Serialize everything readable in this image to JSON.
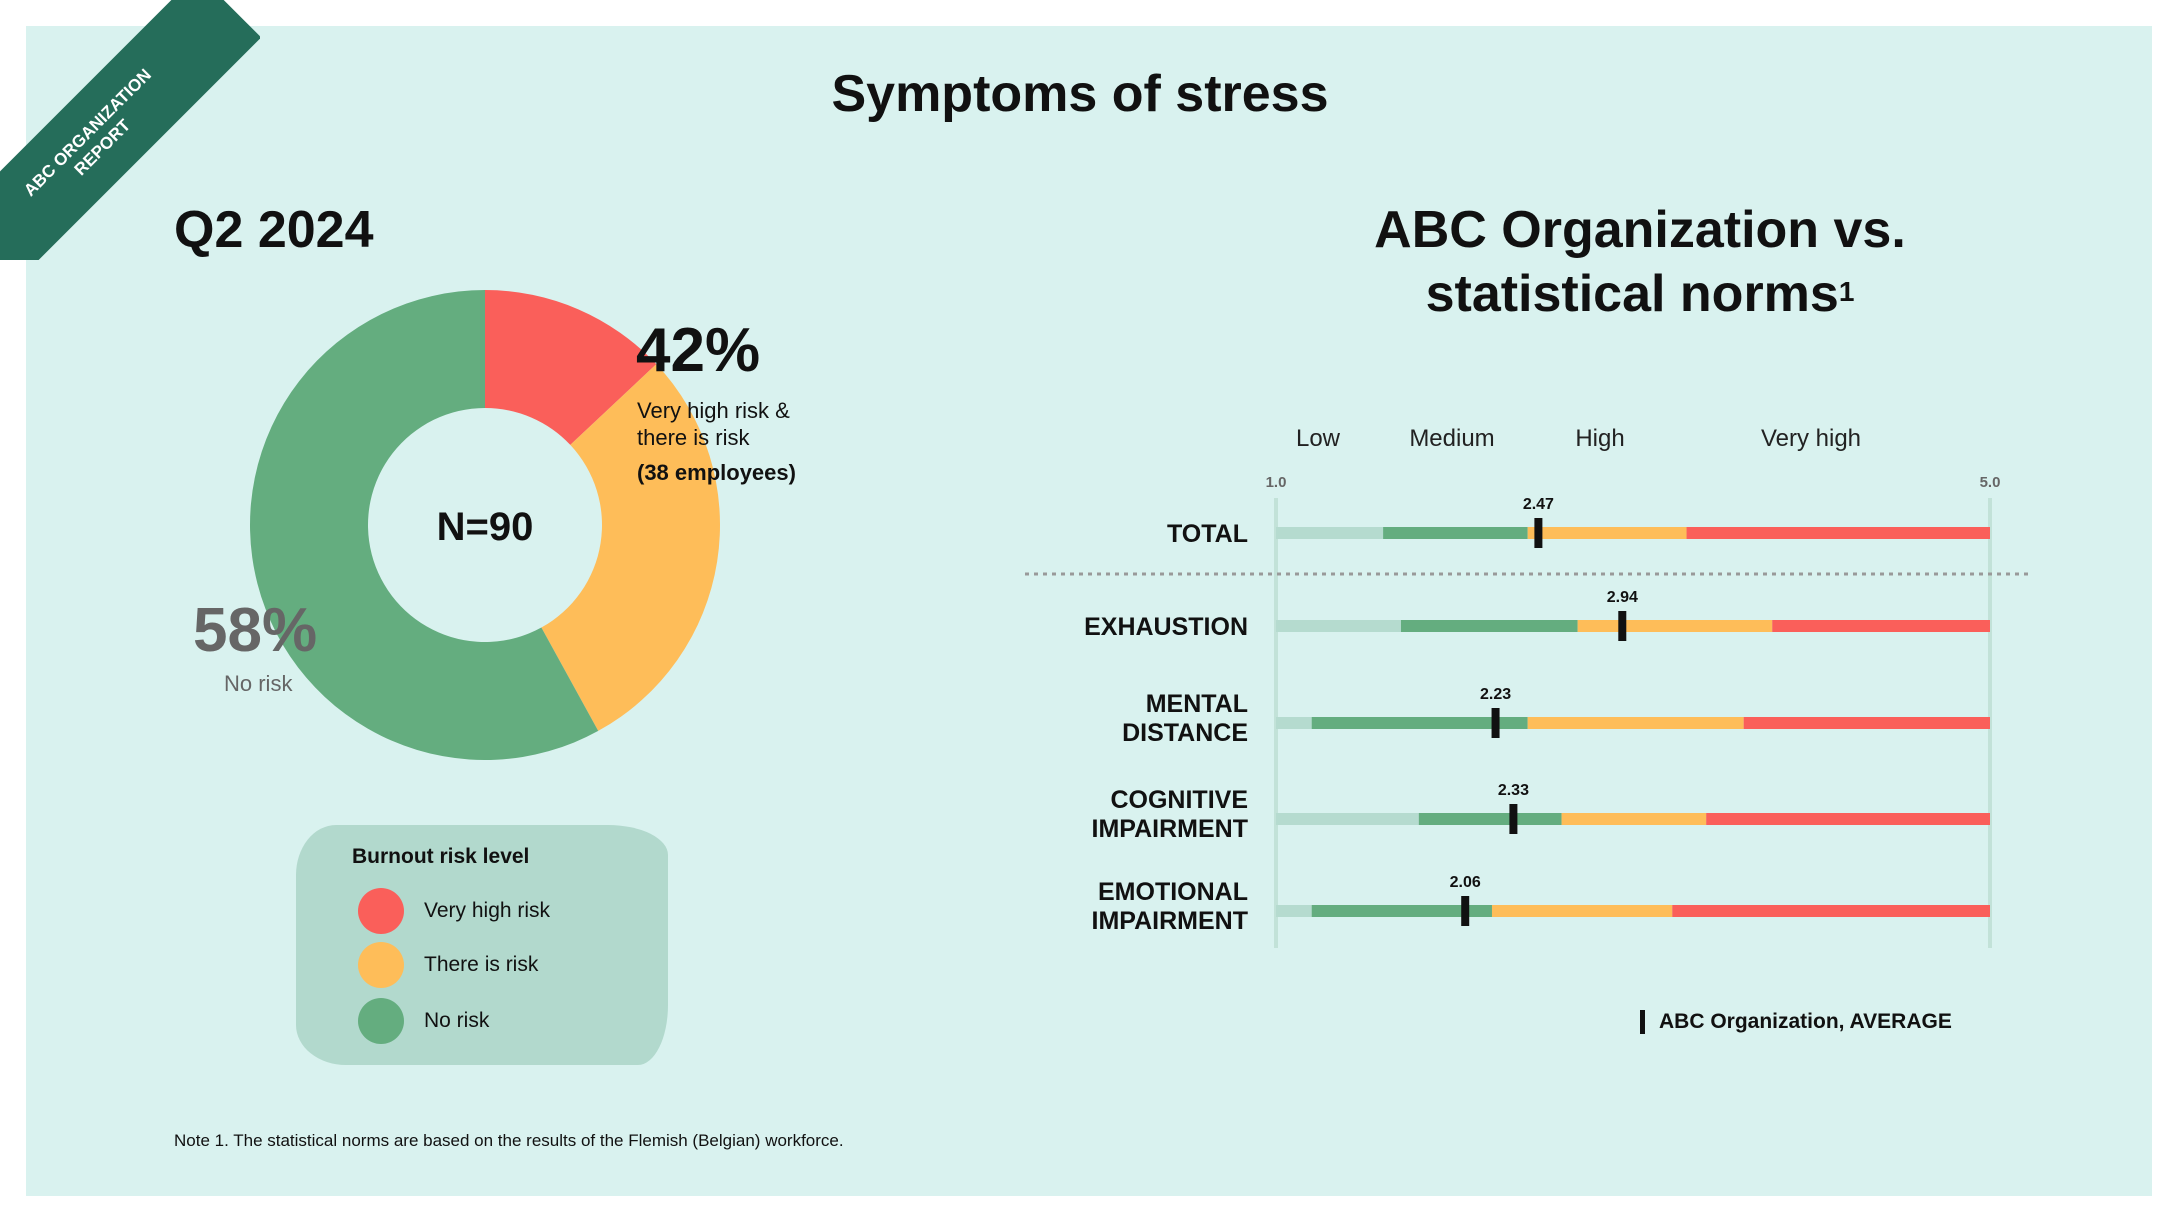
{
  "ribbon": {
    "line1": "ABC ORGANIZATION",
    "line2": "REPORT"
  },
  "title": "Symptoms of stress",
  "period": "Q2 2024",
  "comparison_title": {
    "line1": "ABC Organization vs.",
    "line2": "statistical norms",
    "footnote": "1"
  },
  "donut": {
    "center_label": "N=90",
    "risk_pct": "42%",
    "risk_desc_line1": "Very high risk &",
    "risk_desc_line2": "there is risk",
    "risk_employees": "(38 employees)",
    "no_risk_pct": "58%",
    "no_risk_label": "No risk"
  },
  "legend": {
    "title": "Burnout risk level",
    "items": [
      {
        "label": "Very high risk",
        "color": "#fa5f5a"
      },
      {
        "label": "There is risk",
        "color": "#febd59"
      },
      {
        "label": "No risk",
        "color": "#64ad7f"
      }
    ]
  },
  "chart_data": [
    {
      "type": "pie",
      "center_label": "N=90",
      "slices": [
        {
          "label": "Very high risk",
          "value": 13,
          "color": "#fa5f5a"
        },
        {
          "label": "There is risk",
          "value": 29,
          "color": "#febd59"
        },
        {
          "label": "No risk",
          "value": 58,
          "color": "#64ad7f"
        }
      ]
    },
    {
      "type": "bar",
      "orientation": "horizontal",
      "xlim": [
        1.0,
        5.0
      ],
      "x_tick_labels": [
        "1.0",
        "5.0"
      ],
      "zone_labels": [
        "Low",
        "Medium",
        "High",
        "Very high"
      ],
      "zone_colors": [
        "#b5dbcf",
        "#64ad7f",
        "#febd59",
        "#fa5f5a"
      ],
      "legend": "ABC Organization, AVERAGE",
      "rows": [
        {
          "label": [
            "TOTAL"
          ],
          "value": 2.47,
          "value_label": "2.47",
          "zones": [
            1.0,
            1.6,
            2.41,
            3.3,
            5.0
          ]
        },
        {
          "label": [
            "EXHAUSTION"
          ],
          "value": 2.94,
          "value_label": "2.94",
          "zones": [
            1.0,
            1.7,
            2.69,
            3.78,
            5.0
          ]
        },
        {
          "label": [
            "MENTAL",
            "DISTANCE"
          ],
          "value": 2.23,
          "value_label": "2.23",
          "zones": [
            1.0,
            1.2,
            2.41,
            3.62,
            5.0
          ]
        },
        {
          "label": [
            "COGNITIVE",
            "IMPAIRMENT"
          ],
          "value": 2.33,
          "value_label": "2.33",
          "zones": [
            1.0,
            1.8,
            2.6,
            3.41,
            5.0
          ]
        },
        {
          "label": [
            "EMOTIONAL",
            "IMPAIRMENT"
          ],
          "value": 2.06,
          "value_label": "2.06",
          "zones": [
            1.0,
            1.2,
            2.21,
            3.22,
            5.0
          ]
        }
      ]
    }
  ],
  "note": "Note 1. The statistical norms are based on the results of the Flemish (Belgian) workforce."
}
